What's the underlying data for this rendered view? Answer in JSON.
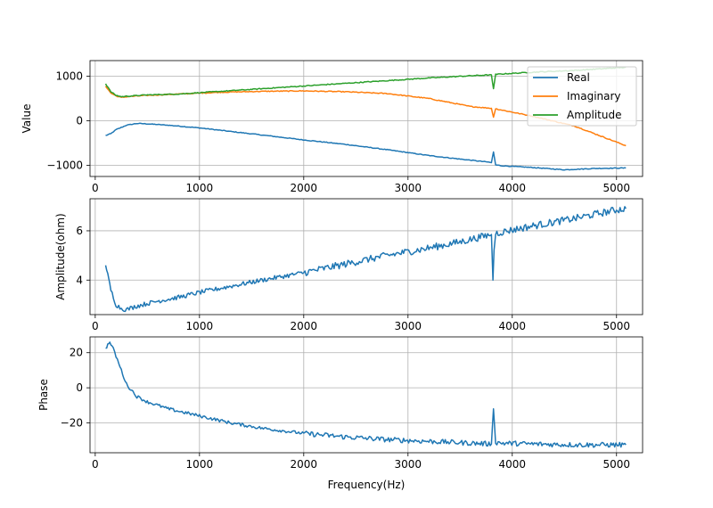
{
  "chart_data": [
    {
      "type": "line",
      "ylabel": "Value",
      "xlim": [
        -50,
        5250
      ],
      "ylim": [
        -1250,
        1350
      ],
      "xticks": [
        "0",
        "1000",
        "2000",
        "3000",
        "4000",
        "5000"
      ],
      "yticks": [
        "−1000",
        "0",
        "1000"
      ],
      "ytick_values": [
        -1000,
        0,
        1000
      ],
      "grid": true,
      "legend_position": "top-right",
      "series": [
        {
          "name": "Real",
          "color": "#1f77b4",
          "x": [
            100,
            150,
            200,
            300,
            400,
            500,
            700,
            1000,
            1300,
            1600,
            2000,
            2400,
            2800,
            3200,
            3500,
            3780,
            3800,
            3820,
            3840,
            3900,
            4200,
            4500,
            4800,
            5090
          ],
          "y": [
            -330,
            -290,
            -200,
            -100,
            -60,
            -70,
            -100,
            -160,
            -240,
            -320,
            -430,
            -530,
            -650,
            -780,
            -860,
            -930,
            -940,
            -700,
            -990,
            -1010,
            -1050,
            -1100,
            -1070,
            -1060
          ]
        },
        {
          "name": "Imaginary",
          "color": "#ff7f0e",
          "x": [
            100,
            150,
            200,
            250,
            300,
            500,
            800,
            1200,
            1600,
            2000,
            2400,
            2800,
            3200,
            3600,
            3800,
            3820,
            3840,
            3900,
            4200,
            4600,
            5090
          ],
          "y": [
            780,
            620,
            560,
            520,
            540,
            570,
            600,
            640,
            660,
            670,
            650,
            610,
            500,
            320,
            280,
            80,
            270,
            240,
            100,
            -120,
            -560
          ]
        },
        {
          "name": "Amplitude",
          "color": "#2ca02c",
          "x": [
            100,
            150,
            200,
            250,
            300,
            500,
            800,
            1200,
            1600,
            2000,
            2400,
            2800,
            3200,
            3600,
            3800,
            3820,
            3840,
            3900,
            4200,
            4600,
            5090
          ],
          "y": [
            830,
            650,
            570,
            540,
            550,
            580,
            600,
            660,
            720,
            780,
            840,
            900,
            960,
            1010,
            1030,
            720,
            1040,
            1050,
            1090,
            1130,
            1200
          ]
        }
      ]
    },
    {
      "type": "line",
      "ylabel": "Amplitude(ohm)",
      "xlim": [
        -50,
        5250
      ],
      "ylim": [
        2.6,
        7.3
      ],
      "xticks": [
        "0",
        "1000",
        "2000",
        "3000",
        "4000",
        "5000"
      ],
      "yticks": [
        "4",
        "6"
      ],
      "ytick_values": [
        4,
        6
      ],
      "grid": true,
      "series": [
        {
          "name": "Amplitude",
          "color": "#1f77b4",
          "x": [
            100,
            120,
            150,
            200,
            250,
            300,
            400,
            600,
            800,
            1000,
            1300,
            1600,
            2000,
            2400,
            2800,
            3200,
            3500,
            3800,
            3815,
            3825,
            3840,
            3900,
            4200,
            4600,
            5000,
            5090
          ],
          "y": [
            4.6,
            4.2,
            3.6,
            3.0,
            2.85,
            2.8,
            2.95,
            3.15,
            3.3,
            3.5,
            3.75,
            4.0,
            4.3,
            4.65,
            5.0,
            5.3,
            5.55,
            5.85,
            4.0,
            5.2,
            5.9,
            5.95,
            6.2,
            6.5,
            6.85,
            6.9
          ]
        }
      ]
    },
    {
      "type": "line",
      "ylabel": "Phase",
      "xlabel": "Frequency(Hz)",
      "xlim": [
        -50,
        5250
      ],
      "ylim": [
        -37,
        29
      ],
      "xticks": [
        "0",
        "1000",
        "2000",
        "3000",
        "4000",
        "5000"
      ],
      "yticks": [
        "−20",
        "0",
        "20"
      ],
      "ytick_values": [
        -20,
        0,
        20
      ],
      "grid": true,
      "series": [
        {
          "name": "Phase",
          "color": "#1f77b4",
          "x": [
            100,
            130,
            160,
            200,
            250,
            300,
            400,
            500,
            700,
            1000,
            1300,
            1600,
            2000,
            2400,
            2800,
            3200,
            3600,
            3800,
            3820,
            3840,
            3900,
            4200,
            4600,
            5090
          ],
          "y": [
            22,
            26,
            24,
            18,
            10,
            2,
            -5,
            -8,
            -12,
            -16,
            -20,
            -23,
            -26,
            -28,
            -29.5,
            -30.5,
            -31.5,
            -32,
            -12,
            -31,
            -31.5,
            -32,
            -32.5,
            -32.5
          ]
        }
      ]
    }
  ]
}
